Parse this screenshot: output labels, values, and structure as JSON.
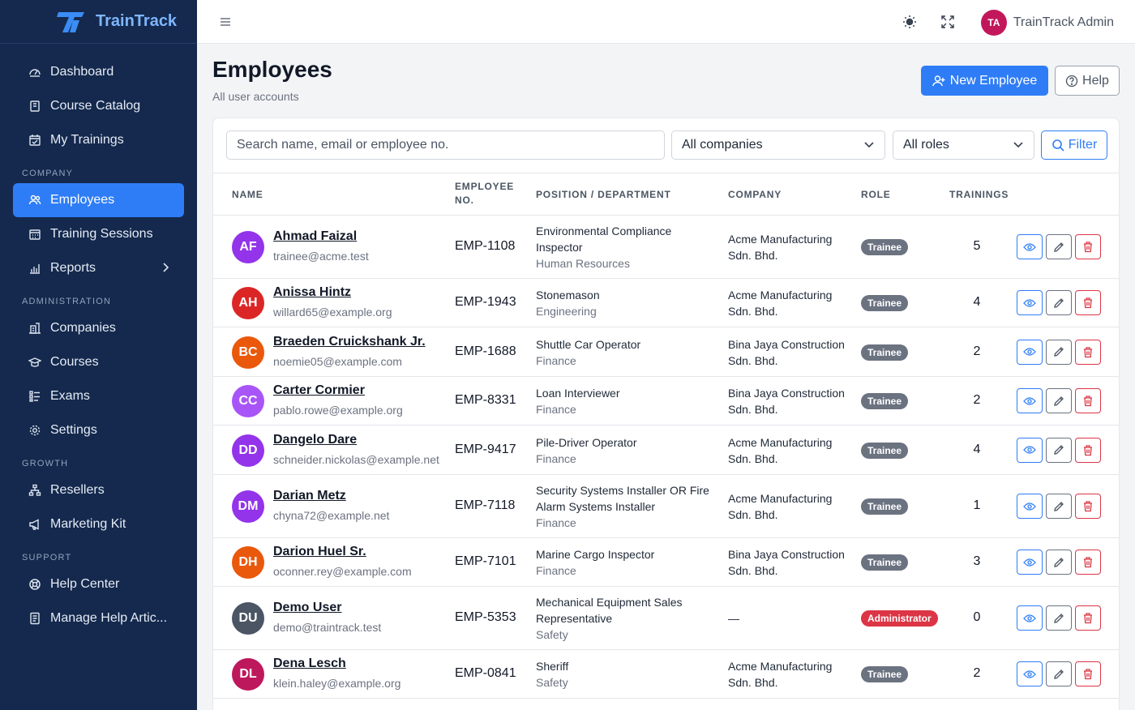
{
  "app": {
    "name": "TrainTrack"
  },
  "sidebar": {
    "items": [
      {
        "label": "Dashboard",
        "icon": "dashboard-icon"
      },
      {
        "label": "Course Catalog",
        "icon": "book-icon"
      },
      {
        "label": "My Trainings",
        "icon": "calendar-check-icon"
      }
    ],
    "sections": [
      {
        "label": "COMPANY",
        "items": [
          {
            "label": "Employees",
            "icon": "users-icon",
            "active": true
          },
          {
            "label": "Training Sessions",
            "icon": "calendar-icon"
          },
          {
            "label": "Reports",
            "icon": "bar-chart-icon",
            "has_children": true
          }
        ]
      },
      {
        "label": "ADMINISTRATION",
        "items": [
          {
            "label": "Companies",
            "icon": "building-icon"
          },
          {
            "label": "Courses",
            "icon": "mortarboard-icon"
          },
          {
            "label": "Exams",
            "icon": "checklist-icon"
          },
          {
            "label": "Settings",
            "icon": "gear-icon"
          }
        ]
      },
      {
        "label": "GROWTH",
        "items": [
          {
            "label": "Resellers",
            "icon": "diagram-icon"
          },
          {
            "label": "Marketing Kit",
            "icon": "megaphone-icon"
          }
        ]
      },
      {
        "label": "SUPPORT",
        "items": [
          {
            "label": "Help Center",
            "icon": "life-ring-icon"
          },
          {
            "label": "Manage Help Artic...",
            "icon": "document-icon"
          }
        ]
      }
    ]
  },
  "topbar": {
    "user_initials": "TA",
    "user_name": "TrainTrack Admin",
    "avatar_color": "#c2185b"
  },
  "page": {
    "title": "Employees",
    "subtitle": "All user accounts",
    "new_button": "New Employee",
    "help_button": "Help"
  },
  "filters": {
    "search_placeholder": "Search name, email or employee no.",
    "company_select": "All companies",
    "role_select": "All roles",
    "filter_button": "Filter"
  },
  "table": {
    "headers": {
      "name": "NAME",
      "empno_1": "EMPLOYEE",
      "empno_2": "NO.",
      "position": "POSITION / DEPARTMENT",
      "company": "COMPANY",
      "role": "ROLE",
      "trainings": "TRAININGS"
    },
    "rows": [
      {
        "initials": "AF",
        "color": "#9333ea",
        "name": "Ahmad Faizal",
        "email": "trainee@acme.test",
        "empno": "EMP-1108",
        "position_1": "Environmental Compliance",
        "position_2": "Inspector",
        "department": "Human Resources",
        "company_1": "Acme Manufacturing",
        "company_2": "Sdn. Bhd.",
        "role": "Trainee",
        "trainings": "5"
      },
      {
        "initials": "AH",
        "color": "#dc2626",
        "name": "Anissa Hintz",
        "email": "willard65@example.org",
        "empno": "EMP-1943",
        "position_1": "Stonemason",
        "position_2": "",
        "department": "Engineering",
        "company_1": "Acme Manufacturing",
        "company_2": "Sdn. Bhd.",
        "role": "Trainee",
        "trainings": "4"
      },
      {
        "initials": "BC",
        "color": "#ea580c",
        "name": "Braeden Cruickshank Jr.",
        "email": "noemie05@example.com",
        "empno": "EMP-1688",
        "position_1": "Shuttle Car Operator",
        "position_2": "",
        "department": "Finance",
        "company_1": "Bina Jaya Construction",
        "company_2": "Sdn. Bhd.",
        "role": "Trainee",
        "trainings": "2"
      },
      {
        "initials": "CC",
        "color": "#a855f7",
        "name": "Carter Cormier",
        "email": "pablo.rowe@example.org",
        "empno": "EMP-8331",
        "position_1": "Loan Interviewer",
        "position_2": "",
        "department": "Finance",
        "company_1": "Bina Jaya Construction",
        "company_2": "Sdn. Bhd.",
        "role": "Trainee",
        "trainings": "2"
      },
      {
        "initials": "DD",
        "color": "#9333ea",
        "name": "Dangelo Dare",
        "email": "schneider.nickolas@example.net",
        "empno": "EMP-9417",
        "position_1": "Pile-Driver Operator",
        "position_2": "",
        "department": "Finance",
        "company_1": "Acme Manufacturing",
        "company_2": "Sdn. Bhd.",
        "role": "Trainee",
        "trainings": "4"
      },
      {
        "initials": "DM",
        "color": "#9333ea",
        "name": "Darian Metz",
        "email": "chyna72@example.net",
        "empno": "EMP-7118",
        "position_1": "Security Systems Installer OR Fire",
        "position_2": "Alarm Systems Installer",
        "department": "Finance",
        "company_1": "Acme Manufacturing",
        "company_2": "Sdn. Bhd.",
        "role": "Trainee",
        "trainings": "1"
      },
      {
        "initials": "DH",
        "color": "#ea580c",
        "name": "Darion Huel Sr.",
        "email": "oconner.rey@example.com",
        "empno": "EMP-7101",
        "position_1": "Marine Cargo Inspector",
        "position_2": "",
        "department": "Finance",
        "company_1": "Bina Jaya Construction",
        "company_2": "Sdn. Bhd.",
        "role": "Trainee",
        "trainings": "3"
      },
      {
        "initials": "DU",
        "color": "#4b5563",
        "name": "Demo User",
        "email": "demo@traintrack.test",
        "empno": "EMP-5353",
        "position_1": "Mechanical Equipment Sales",
        "position_2": "Representative",
        "department": "Safety",
        "company_1": "—",
        "company_2": "",
        "role": "Administrator",
        "trainings": "0"
      },
      {
        "initials": "DL",
        "color": "#be185d",
        "name": "Dena Lesch",
        "email": "klein.haley@example.org",
        "empno": "EMP-0841",
        "position_1": "Sheriff",
        "position_2": "",
        "department": "Safety",
        "company_1": "Acme Manufacturing",
        "company_2": "Sdn. Bhd.",
        "role": "Trainee",
        "trainings": "2"
      }
    ]
  }
}
